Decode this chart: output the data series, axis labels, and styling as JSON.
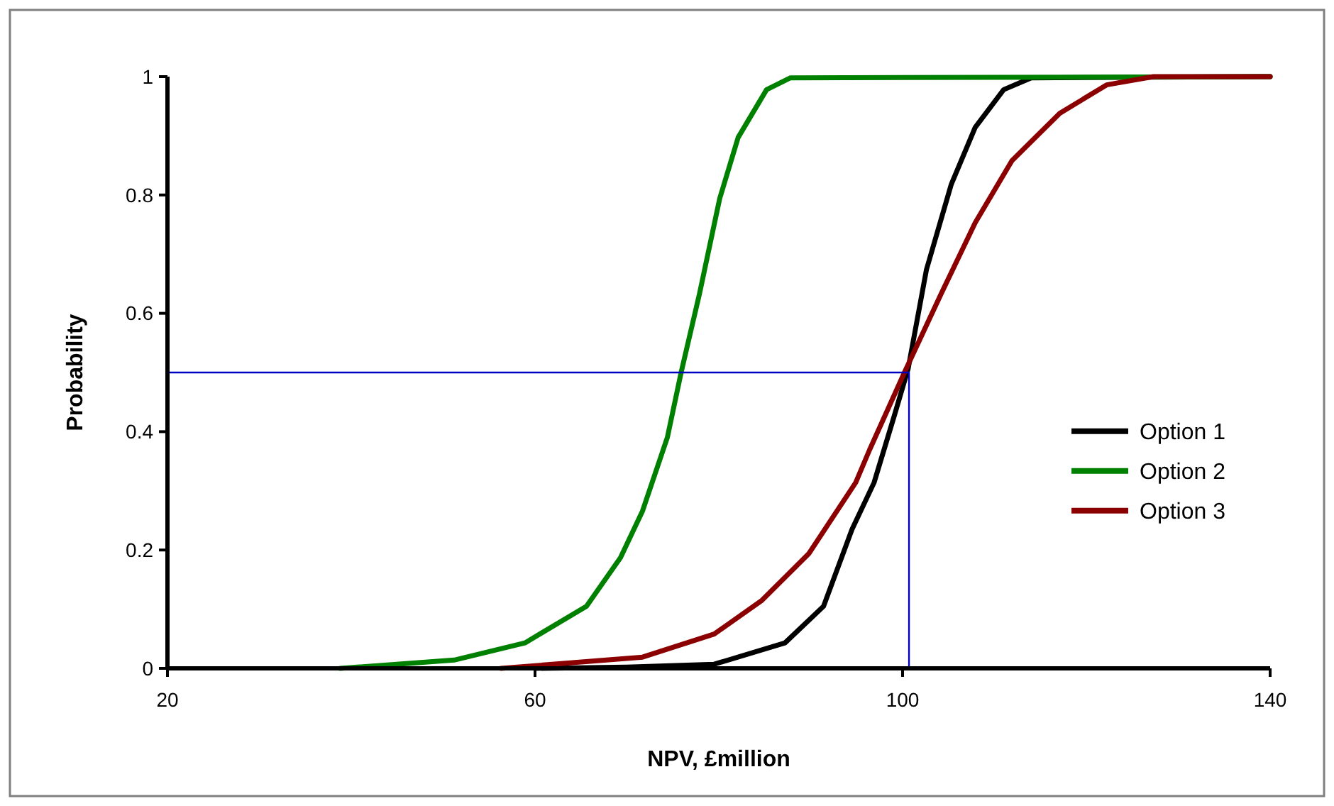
{
  "chart_data": {
    "type": "line",
    "xlabel": "NPV, £million",
    "ylabel": "Probability",
    "xlim": [
      20,
      140
    ],
    "xticks": [
      20,
      60,
      100,
      140
    ],
    "ylim": [
      0,
      1
    ],
    "yticks": [
      0,
      0.2,
      0.4,
      0.6,
      0.8,
      1
    ],
    "grid": false,
    "legend": "right",
    "marker": "none",
    "line_style": "solid",
    "series": [
      {
        "name": "Option 1",
        "color": "#000000",
        "x": [
          60,
          70,
          79.5,
          87.2,
          91.4,
          94.5,
          96.9,
          99.1,
          100.6,
          102.6,
          105.3,
          107.9,
          111,
          114,
          140
        ],
        "values": [
          0,
          0.002,
          0.007,
          0.043,
          0.105,
          0.235,
          0.314,
          0.427,
          0.506,
          0.674,
          0.818,
          0.914,
          0.978,
          0.998,
          1
        ]
      },
      {
        "name": "Option 2",
        "color": "#008000",
        "x": [
          38.8,
          51.2,
          58.9,
          65.6,
          69.3,
          71.7,
          74.4,
          75.9,
          77.9,
          80.1,
          82.1,
          85.2,
          87.8,
          140
        ],
        "values": [
          0,
          0.014,
          0.043,
          0.105,
          0.187,
          0.266,
          0.39,
          0.5,
          0.633,
          0.794,
          0.897,
          0.978,
          0.998,
          1
        ]
      },
      {
        "name": "Option 3",
        "color": "#8b0000",
        "x": [
          56.3,
          71.7,
          79.5,
          84.7,
          89.8,
          94.9,
          96.4,
          100.2,
          104.2,
          107.9,
          111.9,
          117.1,
          122.2,
          127.3,
          140
        ],
        "values": [
          0,
          0.019,
          0.058,
          0.115,
          0.194,
          0.314,
          0.369,
          0.5,
          0.633,
          0.753,
          0.858,
          0.938,
          0.986,
          1,
          1
        ]
      },
      {
        "color": "#0000c0",
        "x": [
          20,
          100.7,
          100.7
        ],
        "values": [
          0.5,
          0.5,
          0
        ]
      }
    ]
  }
}
